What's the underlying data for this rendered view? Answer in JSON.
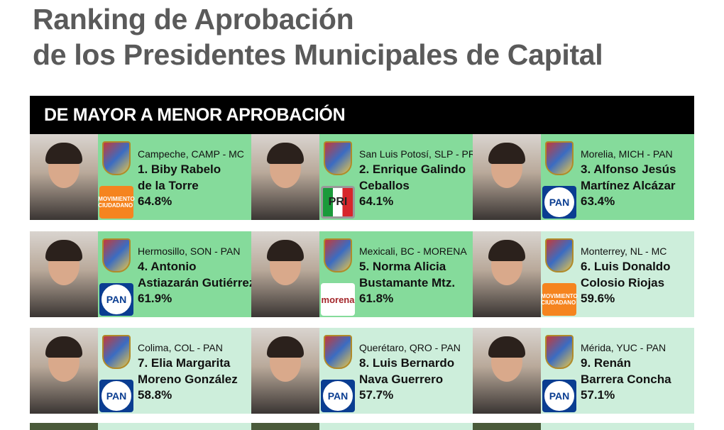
{
  "title": {
    "line1": "Ranking de Aprobación",
    "line2": "de los Presidentes Municipales de Capital"
  },
  "section_header": "DE MAYOR A MENOR APROBACIÓN",
  "colors": {
    "high": "#85db9b",
    "mid": "#cdeedb",
    "header": "#000000",
    "title": "#5a5a5a"
  },
  "ranking": [
    {
      "location": "Campeche, CAMP - MC",
      "name1": "1. Biby Rabelo",
      "name2": "de la Torre",
      "approval": "64.8%",
      "party": "MC",
      "party_label": "MOVIMIENTO CIUDADANO",
      "tier": "high"
    },
    {
      "location": "San Luis Potosí, SLP - PRI",
      "name1": "2. Enrique Galindo",
      "name2": "Ceballos",
      "approval": "64.1%",
      "party": "PRI",
      "party_label": "PRI",
      "tier": "high"
    },
    {
      "location": "Morelia, MICH - PAN",
      "name1": "3. Alfonso Jesús",
      "name2": "Martínez Alcázar",
      "approval": "63.4%",
      "party": "PAN",
      "party_label": "PAN",
      "tier": "high"
    },
    {
      "location": "Hermosillo, SON - PAN",
      "name1": "4. Antonio",
      "name2": "Astiazarán Gutiérrez",
      "approval": "61.9%",
      "party": "PAN",
      "party_label": "PAN",
      "tier": "high"
    },
    {
      "location": "Mexicali, BC - MORENA",
      "name1": "5. Norma Alicia",
      "name2": "Bustamante Mtz.",
      "approval": "61.8%",
      "party": "MORENA",
      "party_label": "morena",
      "tier": "high"
    },
    {
      "location": "Monterrey, NL - MC",
      "name1": "6. Luis Donaldo",
      "name2": "Colosio Riojas",
      "approval": "59.6%",
      "party": "MC",
      "party_label": "MOVIMIENTO CIUDADANO",
      "tier": "mid"
    },
    {
      "location": "Colima, COL - PAN",
      "name1": "7. Elia Margarita",
      "name2": "Moreno González",
      "approval": "58.8%",
      "party": "PAN",
      "party_label": "PAN",
      "tier": "mid"
    },
    {
      "location": "Querétaro, QRO - PAN",
      "name1": "8. Luis Bernardo",
      "name2": "Nava Guerrero",
      "approval": "57.7%",
      "party": "PAN",
      "party_label": "PAN",
      "tier": "mid"
    },
    {
      "location": "Mérida, YUC - PAN",
      "name1": "9. Renán",
      "name2": "Barrera Concha",
      "approval": "57.1%",
      "party": "PAN",
      "party_label": "PAN",
      "tier": "mid"
    }
  ]
}
